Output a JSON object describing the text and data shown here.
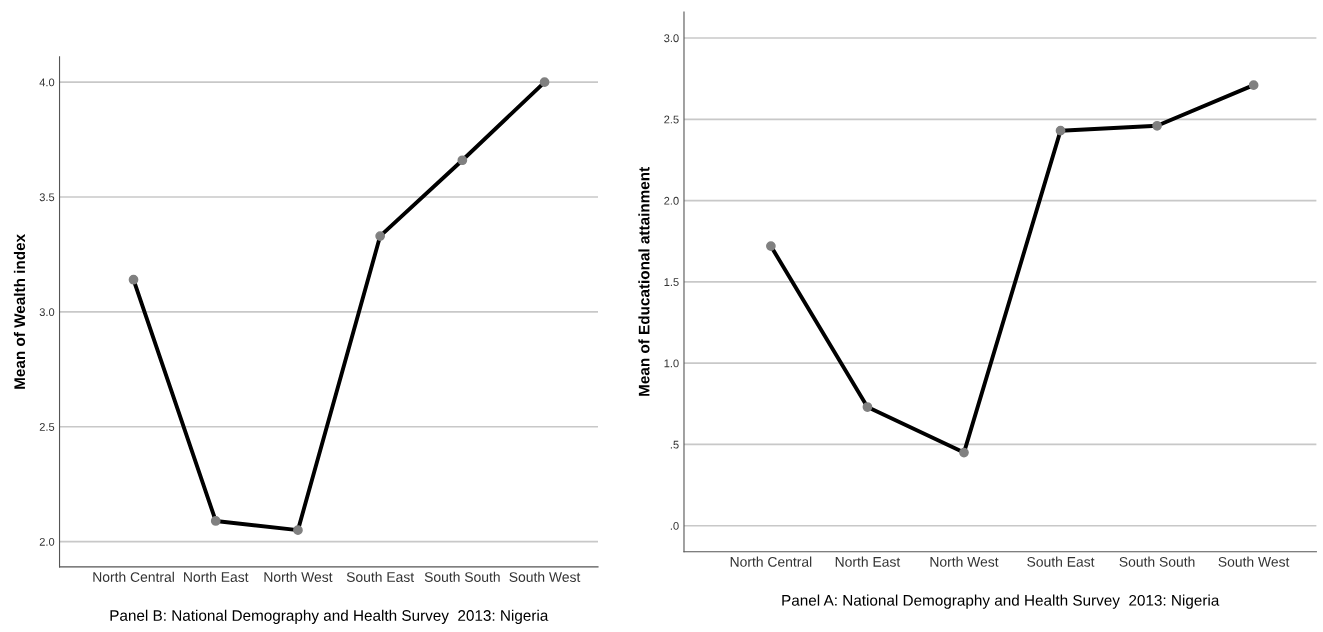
{
  "chart_data": [
    {
      "type": "line",
      "xlabel": "Panel B: National Demography and Health Survey  2013: Nigeria",
      "ylabel": "Mean of Wealth index",
      "categories": [
        "North Central",
        "North East",
        "North West",
        "South East",
        "South South",
        "South West"
      ],
      "series": [
        {
          "color": "#000000",
          "values": [
            3.14,
            2.09,
            2.05,
            3.33,
            3.66,
            4.0
          ]
        }
      ],
      "ylim": [
        1.89,
        4.11
      ],
      "yticks": [
        {
          "value": 2.0,
          "label": "2.0"
        },
        {
          "value": 2.5,
          "label": "2.5"
        },
        {
          "value": 3.0,
          "label": "3.0"
        },
        {
          "value": 3.5,
          "label": "3.5"
        },
        {
          "value": 4.0,
          "label": "4.0"
        }
      ],
      "grid": "y",
      "marker": "circle",
      "line_style": "solid"
    },
    {
      "type": "line",
      "xlabel": "Panel A: National Demography and Health Survey  2013: Nigeria",
      "ylabel": "Mean of Educational attainment",
      "categories": [
        "North Central",
        "North East",
        "North West",
        "South East",
        "South South",
        "South West"
      ],
      "series": [
        {
          "color": "#000000",
          "values": [
            1.72,
            0.73,
            0.45,
            2.43,
            2.46,
            2.71
          ]
        }
      ],
      "ylim": [
        -0.16,
        3.16
      ],
      "yticks": [
        {
          "value": 0.0,
          "label": ".0"
        },
        {
          "value": 0.5,
          "label": ".5"
        },
        {
          "value": 1.0,
          "label": "1.0"
        },
        {
          "value": 1.5,
          "label": "1.5"
        },
        {
          "value": 2.0,
          "label": "2.0"
        },
        {
          "value": 2.5,
          "label": "2.5"
        },
        {
          "value": 3.0,
          "label": "3.0"
        }
      ],
      "grid": "y",
      "marker": "circle",
      "line_style": "solid"
    }
  ]
}
